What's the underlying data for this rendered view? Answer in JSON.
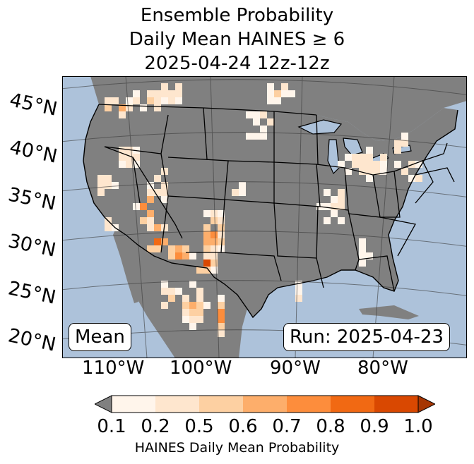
{
  "title": {
    "line1": "Ensemble Probability",
    "line2": "Daily Mean HAINES ≥ 6",
    "line3": "2025-04-24 12z-12z"
  },
  "map": {
    "mean_label": "Mean",
    "run_label": "Run: 2025-04-23",
    "ocean_color": "#adc2da",
    "land_color": "#808080",
    "lat_labels": [
      "45°N",
      "40°N",
      "35°N",
      "30°N",
      "25°N",
      "20°N"
    ],
    "lon_labels": [
      "110°W",
      "100°W",
      "90°W",
      "80°W"
    ]
  },
  "colorbar": {
    "ticks": [
      "0.1",
      "0.2",
      "0.5",
      "0.6",
      "0.7",
      "0.8",
      "0.9",
      "1.0"
    ],
    "colors": [
      "#fff5eb",
      "#fee6ce",
      "#fdd0a2",
      "#fdae6b",
      "#fd8d3c",
      "#f16913",
      "#d94801",
      "#a63603"
    ],
    "under_color": "#808080",
    "label": "HAINES Daily Mean Probability"
  }
}
